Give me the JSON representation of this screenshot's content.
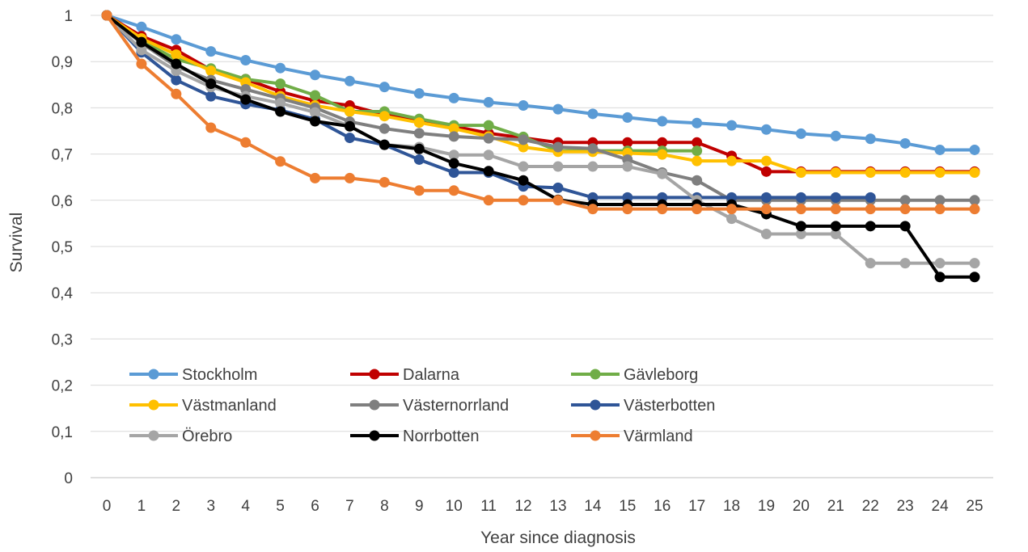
{
  "chart_data": {
    "type": "line",
    "title": "",
    "xlabel": "Year since diagnosis",
    "ylabel": "Survival",
    "x": [
      0,
      1,
      2,
      3,
      4,
      5,
      6,
      7,
      8,
      9,
      10,
      11,
      12,
      13,
      14,
      15,
      16,
      17,
      18,
      19,
      20,
      21,
      22,
      23,
      24,
      25
    ],
    "xlim": [
      0,
      25
    ],
    "ylim": [
      0,
      1
    ],
    "yticks": [
      "0",
      "0,1",
      "0,2",
      "0,3",
      "0,4",
      "0,5",
      "0,6",
      "0,7",
      "0,8",
      "0,9",
      "1"
    ],
    "xticks": [
      "0",
      "1",
      "2",
      "3",
      "4",
      "5",
      "6",
      "7",
      "8",
      "9",
      "10",
      "11",
      "12",
      "13",
      "14",
      "15",
      "16",
      "17",
      "18",
      "19",
      "20",
      "21",
      "22",
      "23",
      "24",
      "25"
    ],
    "grid": "horizontal",
    "legend_position": "bottom-left inside plot",
    "series": [
      {
        "name": "Stockholm",
        "color": "#5B9BD5",
        "values": [
          1,
          0.975,
          0.948,
          0.922,
          0.903,
          0.886,
          0.871,
          0.858,
          0.845,
          0.831,
          0.821,
          0.812,
          0.805,
          0.797,
          0.787,
          0.779,
          0.771,
          0.767,
          0.762,
          0.753,
          0.744,
          0.739,
          0.733,
          0.723,
          0.709,
          0.709
        ]
      },
      {
        "name": "Dalarna",
        "color": "#C00000",
        "values": [
          1,
          0.955,
          0.925,
          0.882,
          0.862,
          0.835,
          0.815,
          0.805,
          0.785,
          0.775,
          0.76,
          0.745,
          0.735,
          0.725,
          0.725,
          0.725,
          0.725,
          0.725,
          0.696,
          0.662,
          0.662,
          0.662,
          0.662,
          0.662,
          0.662,
          0.662
        ]
      },
      {
        "name": "Gävleborg",
        "color": "#70AD47",
        "values": [
          1,
          0.945,
          0.905,
          0.885,
          0.862,
          0.852,
          0.827,
          0.792,
          0.792,
          0.776,
          0.762,
          0.762,
          0.737,
          0.707,
          0.707,
          0.707,
          0.707,
          0.707,
          null,
          null,
          null,
          null,
          null,
          null,
          null,
          null
        ]
      },
      {
        "name": "Västmanland",
        "color": "#FFC000",
        "values": [
          1,
          0.95,
          0.915,
          0.88,
          0.855,
          0.825,
          0.805,
          0.792,
          0.782,
          0.768,
          0.755,
          0.738,
          0.715,
          0.705,
          0.705,
          0.702,
          0.699,
          0.685,
          0.685,
          0.685,
          0.66,
          0.66,
          0.66,
          0.66,
          0.66,
          0.66
        ]
      },
      {
        "name": "Västernorrland",
        "color": "#7F7F7F",
        "values": [
          1,
          0.94,
          0.89,
          0.86,
          0.84,
          0.82,
          0.8,
          0.77,
          0.755,
          0.745,
          0.738,
          0.734,
          0.731,
          0.715,
          0.712,
          0.688,
          0.66,
          0.643,
          0.6,
          0.6,
          0.6,
          0.6,
          0.6,
          0.6,
          0.6,
          0.6
        ]
      },
      {
        "name": "Västerbotten",
        "color": "#2F5597",
        "values": [
          1,
          0.92,
          0.86,
          0.825,
          0.808,
          0.795,
          0.775,
          0.735,
          0.72,
          0.688,
          0.66,
          0.66,
          0.63,
          0.627,
          0.606,
          0.606,
          0.606,
          0.606,
          0.606,
          0.606,
          0.606,
          0.606,
          0.606,
          null,
          null,
          null
        ]
      },
      {
        "name": "Örebro",
        "color": "#A5A5A5",
        "values": [
          1,
          0.925,
          0.88,
          0.845,
          0.825,
          0.81,
          0.79,
          0.76,
          0.72,
          0.715,
          0.698,
          0.698,
          0.673,
          0.673,
          0.673,
          0.673,
          0.657,
          0.6,
          0.56,
          0.527,
          0.527,
          0.527,
          0.464,
          0.464,
          0.464,
          0.464
        ]
      },
      {
        "name": "Norrbotten",
        "color": "#000000",
        "values": [
          1,
          0.942,
          0.895,
          0.852,
          0.818,
          0.792,
          0.771,
          0.76,
          0.72,
          0.711,
          0.68,
          0.663,
          0.643,
          0.601,
          0.591,
          0.591,
          0.591,
          0.591,
          0.591,
          0.57,
          0.544,
          0.544,
          0.544,
          0.544,
          0.434,
          0.434
        ]
      },
      {
        "name": "Värmland",
        "color": "#ED7D31",
        "values": [
          1,
          0.895,
          0.83,
          0.757,
          0.725,
          0.684,
          0.648,
          0.648,
          0.639,
          0.621,
          0.621,
          0.6,
          0.6,
          0.6,
          0.581,
          0.581,
          0.581,
          0.581,
          0.581,
          0.581,
          0.581,
          0.581,
          0.581,
          0.581,
          0.581,
          0.581
        ]
      }
    ]
  }
}
